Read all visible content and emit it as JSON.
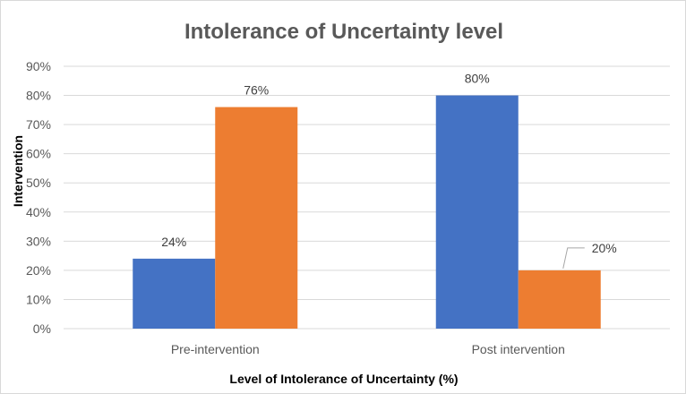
{
  "chart_data": {
    "type": "bar",
    "title": "Intolerance of Uncertainty level",
    "xlabel": "Level of Intolerance of Uncertainty (%)",
    "ylabel": "Intervention",
    "categories": [
      "Pre-intervention",
      "Post intervention"
    ],
    "series": [
      {
        "values": [
          24,
          80
        ],
        "color": "#4472c4"
      },
      {
        "values": [
          76,
          20
        ],
        "color": "#ed7d31"
      }
    ],
    "data_labels": [
      [
        "24%",
        "80%"
      ],
      [
        "76%",
        "20%"
      ]
    ],
    "ylim": [
      0,
      90
    ],
    "yticks": [
      "0%",
      "10%",
      "20%",
      "30%",
      "40%",
      "50%",
      "60%",
      "70%",
      "80%",
      "90%"
    ],
    "grid": true,
    "legend": "none"
  }
}
